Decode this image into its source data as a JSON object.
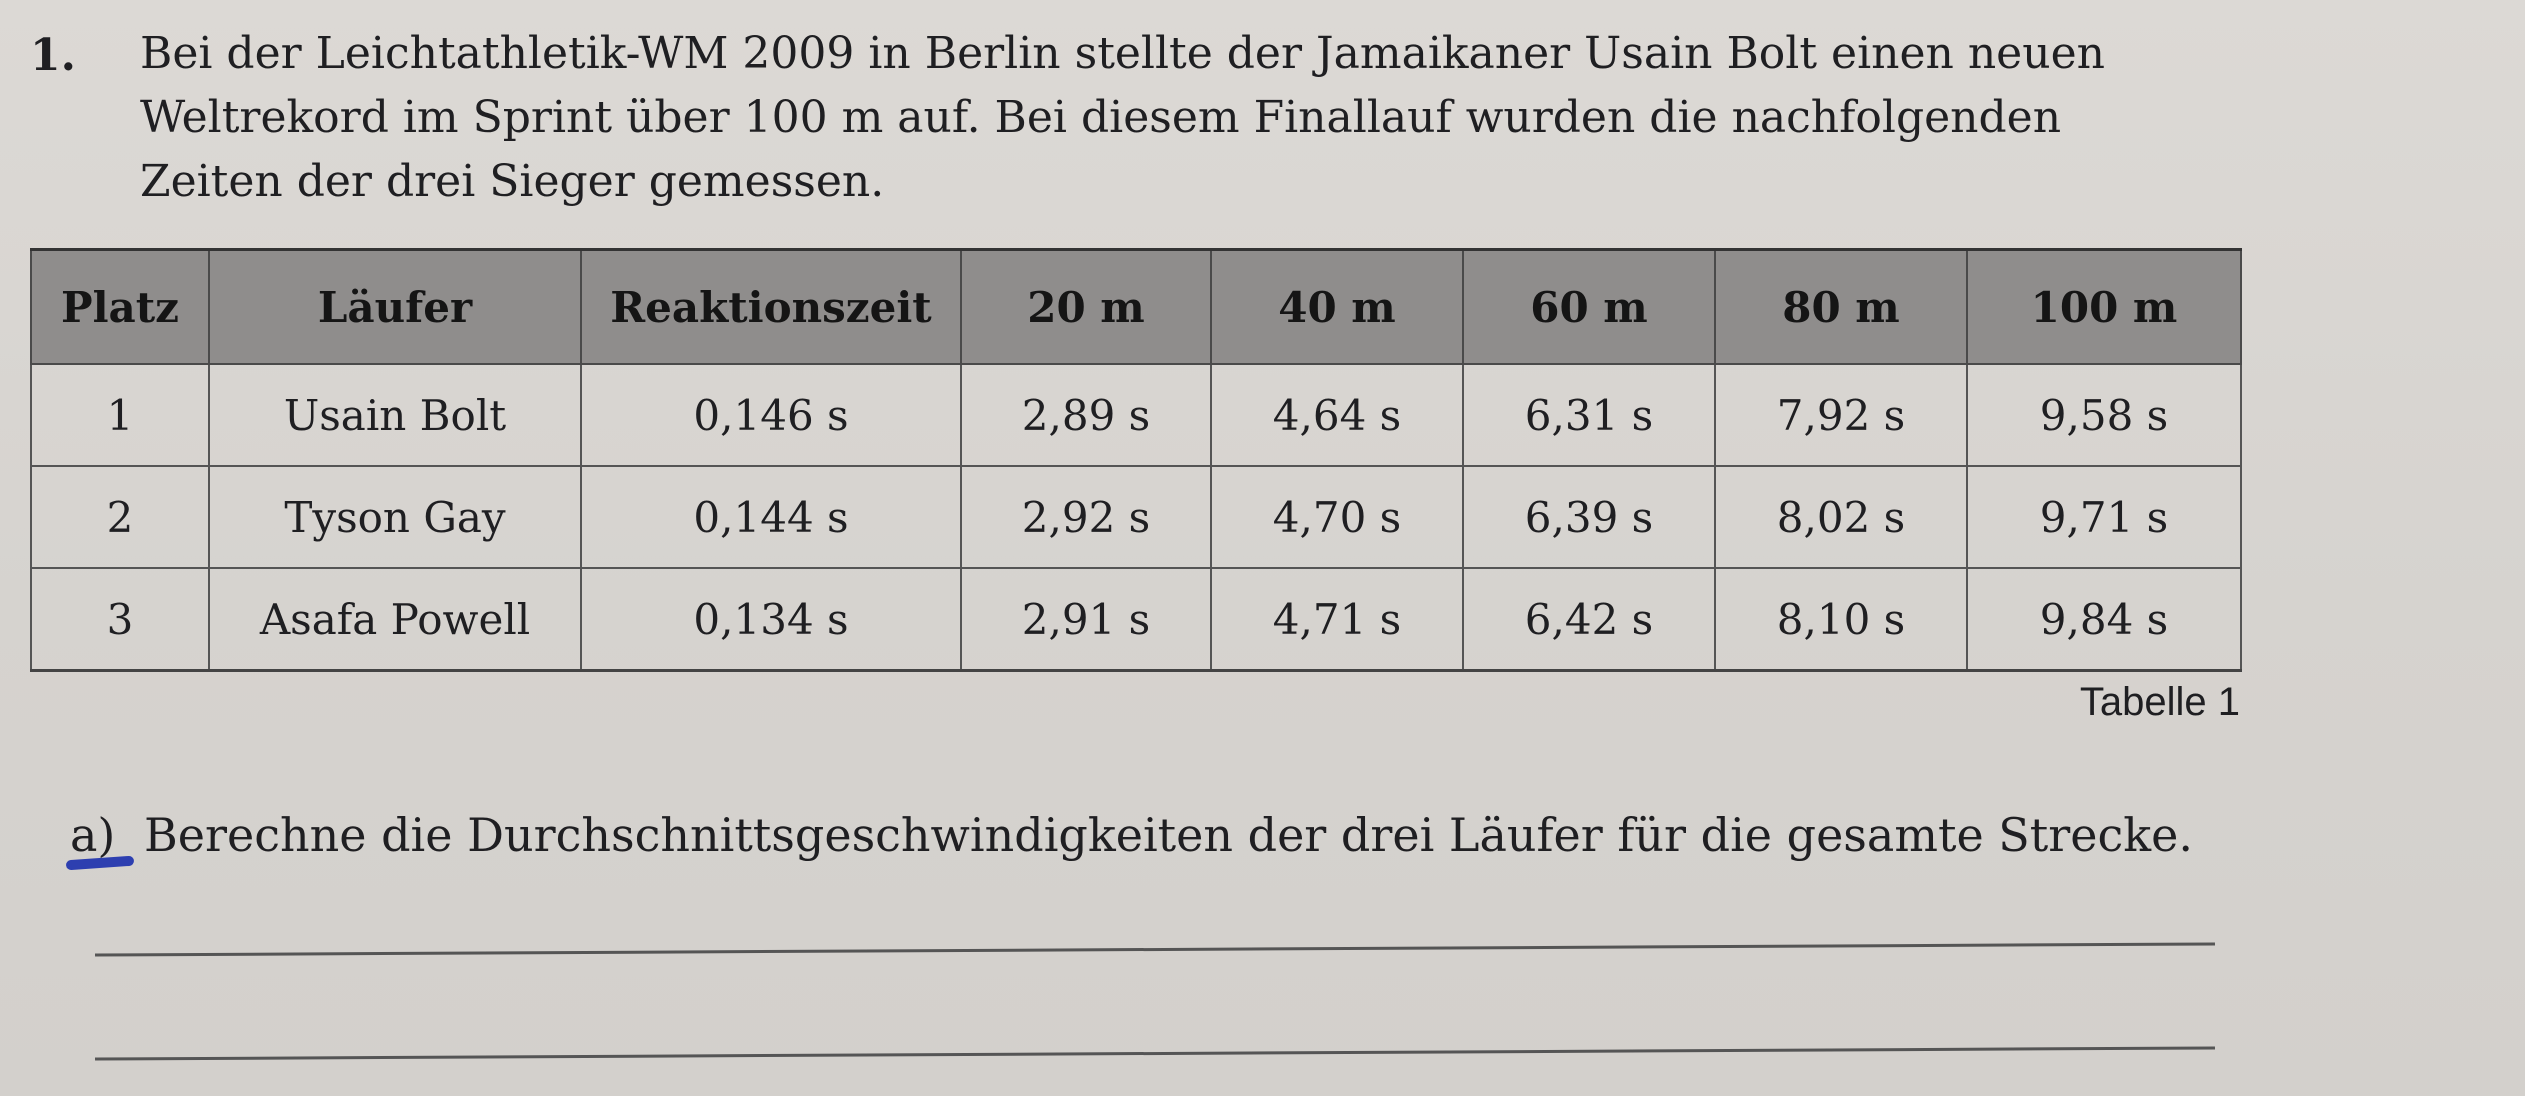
{
  "task": {
    "number": "1.",
    "intro_lines": [
      "Bei der Leichtathletik-WM 2009 in Berlin stellte der Jamaikaner Usain Bolt einen neuen",
      "Weltrekord im Sprint über 100 m auf. Bei diesem Finallauf wurden die nachfolgenden",
      "Zeiten der drei Sieger gemessen."
    ]
  },
  "table": {
    "headers": [
      "Platz",
      "Läufer",
      "Reaktionszeit",
      "20 m",
      "40 m",
      "60 m",
      "80 m",
      "100 m"
    ],
    "rows": [
      [
        "1",
        "Usain Bolt",
        "0,146 s",
        "2,89 s",
        "4,64 s",
        "6,31 s",
        "7,92 s",
        "9,58 s"
      ],
      [
        "2",
        "Tyson Gay",
        "0,144 s",
        "2,92 s",
        "4,70 s",
        "6,39 s",
        "8,02 s",
        "9,71 s"
      ],
      [
        "3",
        "Asafa Powell",
        "0,134 s",
        "2,91 s",
        "4,71 s",
        "6,42 s",
        "8,10 s",
        "9,84 s"
      ]
    ],
    "caption": "Tabelle 1"
  },
  "subtask_a": {
    "label": "a)",
    "text": "Berechne die Durchschnittsgeschwindigkeiten der drei Läufer für die gesamte Strecke."
  },
  "colors": {
    "header_background": "#8f8d8c",
    "paper": "#d9d6d2",
    "pen_mark": "#2d3fb0"
  }
}
